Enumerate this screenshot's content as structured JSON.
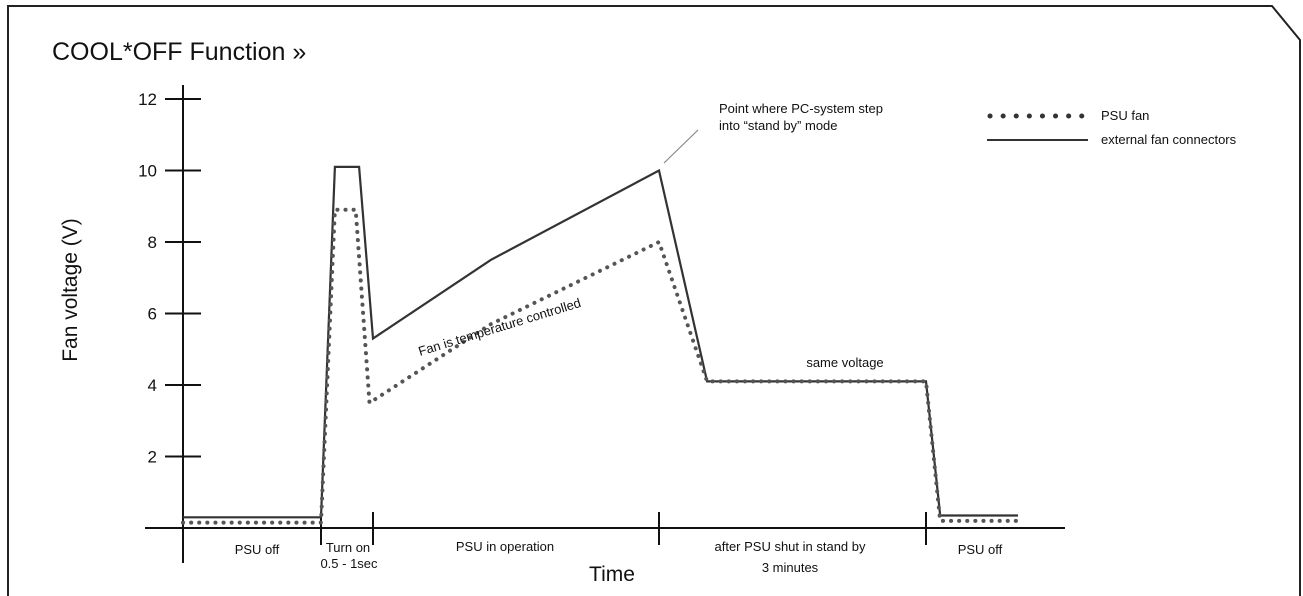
{
  "chart_data": {
    "type": "line",
    "title": "COOL*OFF Function »",
    "xlabel": "Time",
    "ylabel": "Fan voltage (V)",
    "ylim": [
      0,
      12
    ],
    "y_ticks": [
      "2",
      "4",
      "6",
      "8",
      "10",
      "12"
    ],
    "legend_position": "top-right",
    "phases": [
      {
        "label": "PSU off"
      },
      {
        "label": "Turn on",
        "sublabel": "0.5 - 1sec"
      },
      {
        "label": "PSU in operation"
      },
      {
        "label": "after PSU shut in stand by",
        "sublabel": "3 minutes"
      },
      {
        "label": "PSU off"
      }
    ],
    "series": [
      {
        "name": "external fan connectors",
        "style": "solid",
        "points": [
          [
            0,
            0.3
          ],
          [
            1.0,
            0.3
          ],
          [
            1.08,
            10.1
          ],
          [
            1.22,
            10.1
          ],
          [
            1.3,
            5.3
          ],
          [
            2.0,
            7.5
          ],
          [
            3.0,
            10.0
          ],
          [
            3.18,
            4.1
          ],
          [
            4.0,
            4.1
          ],
          [
            4.1,
            0.35
          ],
          [
            4.65,
            0.35
          ]
        ]
      },
      {
        "name": "PSU fan",
        "style": "dotted",
        "points": [
          [
            0,
            0.15
          ],
          [
            1.0,
            0.15
          ],
          [
            1.08,
            8.9
          ],
          [
            1.2,
            8.9
          ],
          [
            1.28,
            3.5
          ],
          [
            2.0,
            5.7
          ],
          [
            3.0,
            8.0
          ],
          [
            3.18,
            4.1
          ],
          [
            4.0,
            4.1
          ],
          [
            4.1,
            0.2
          ],
          [
            4.65,
            0.2
          ]
        ]
      }
    ],
    "annotations": [
      {
        "text_lines": [
          "Point where PC-system step",
          "into “stand by” mode"
        ]
      },
      {
        "text": "Fan is temperature controlled"
      },
      {
        "text": "same voltage"
      }
    ],
    "colors": {
      "line": "#333333",
      "dotted": "#555555"
    }
  }
}
